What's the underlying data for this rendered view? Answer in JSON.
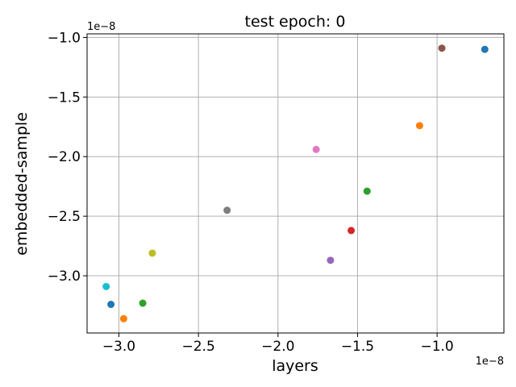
{
  "chart_data": {
    "type": "scatter",
    "title": "test epoch: 0",
    "xlabel": "layers",
    "ylabel": "embedded-sample",
    "x_offset_label": "1e−8",
    "y_offset_label": "1e−8",
    "xlim": [
      -3.2,
      -0.58
    ],
    "ylim": [
      -3.48,
      -0.97
    ],
    "xticks": [
      -3.0,
      -2.5,
      -2.0,
      -1.5,
      -1.0
    ],
    "xtick_labels": [
      "−3.0",
      "−2.5",
      "−2.0",
      "−1.5",
      "−1.0"
    ],
    "yticks": [
      -3.0,
      -2.5,
      -2.0,
      -1.5,
      -1.0
    ],
    "ytick_labels": [
      "−3.0",
      "−2.5",
      "−2.0",
      "−1.5",
      "−1.0"
    ],
    "grid": true,
    "points": [
      {
        "x": -0.7,
        "y": -1.1,
        "color": "#1f77b4"
      },
      {
        "x": -1.11,
        "y": -1.74,
        "color": "#ff7f0e"
      },
      {
        "x": -1.44,
        "y": -2.29,
        "color": "#2ca02c"
      },
      {
        "x": -1.54,
        "y": -2.62,
        "color": "#d62728"
      },
      {
        "x": -1.67,
        "y": -2.87,
        "color": "#9467bd"
      },
      {
        "x": -0.97,
        "y": -1.09,
        "color": "#8c564b"
      },
      {
        "x": -1.76,
        "y": -1.94,
        "color": "#e377c2"
      },
      {
        "x": -2.32,
        "y": -2.45,
        "color": "#7f7f7f"
      },
      {
        "x": -2.79,
        "y": -2.81,
        "color": "#bcbd22"
      },
      {
        "x": -3.08,
        "y": -3.09,
        "color": "#17becf"
      },
      {
        "x": -3.05,
        "y": -3.24,
        "color": "#1f77b4"
      },
      {
        "x": -2.97,
        "y": -3.36,
        "color": "#ff7f0e"
      },
      {
        "x": -2.85,
        "y": -3.23,
        "color": "#2ca02c"
      }
    ]
  }
}
